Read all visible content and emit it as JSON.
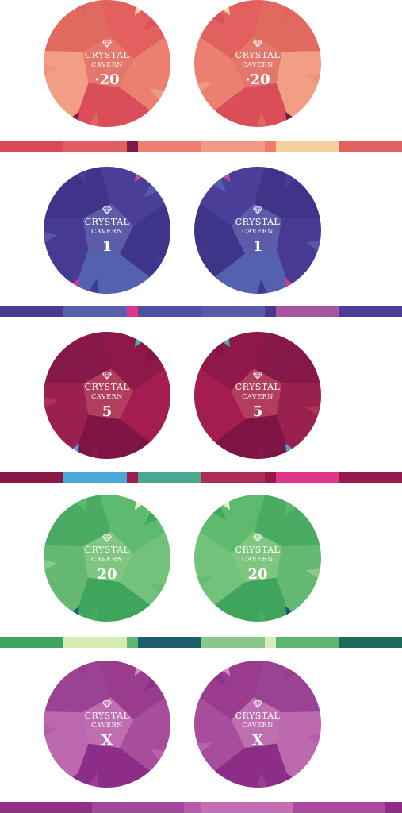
{
  "brand": {
    "line1": "CRYSTAL",
    "line2": "CAVERN",
    "icon": "gem-icon"
  },
  "chip_sets": [
    {
      "id": "set-020",
      "value": "·20",
      "colors": {
        "facets": [
          "#f0907a",
          "#e2605e",
          "#ec8070",
          "#d94e58",
          "#f29e84",
          "#e06a60"
        ],
        "center": "#e37569",
        "accents": [
          "#f5d4a8",
          "#7a1a4a"
        ]
      },
      "stripe": [
        "#d94a56",
        "#e35e5e",
        "#7a1a4a",
        "#ef8070",
        "#f29a80",
        "#f07a68",
        "#f5d0a0",
        "#e2605e"
      ]
    },
    {
      "id": "set-1",
      "value": "1",
      "colors": {
        "facets": [
          "#5a5aa8",
          "#4a3e98",
          "#3e3489",
          "#5262ae",
          "#473a92",
          "#40348a"
        ],
        "center": "#5c5ca8",
        "accents": [
          "#c05090",
          "#e0358a"
        ]
      },
      "stripe": [
        "#4a3a90",
        "#5860ac",
        "#e0358a",
        "#4f4ea0",
        "#5a5aaa",
        "#463a8e",
        "#a855a0",
        "#4c3e96"
      ]
    },
    {
      "id": "set-5",
      "value": "5",
      "colors": {
        "facets": [
          "#b03656",
          "#8e1848",
          "#a41c50",
          "#7e1444",
          "#9a2050",
          "#86184a"
        ],
        "center": "#b23e5c",
        "accents": [
          "#4ab0a0",
          "#4aa4d8"
        ]
      },
      "stripe": [
        "#8a1848",
        "#4aa8d8",
        "#9e1c50",
        "#4aa890",
        "#b02a56",
        "#941a4c",
        "#e0358a",
        "#961a4c"
      ]
    },
    {
      "id": "set-20",
      "value": "20",
      "colors": {
        "facets": [
          "#8ecd8e",
          "#5ebb6e",
          "#72c27a",
          "#3fa45c",
          "#64b872",
          "#4aab62"
        ],
        "center": "#7fc47f",
        "accents": [
          "#e8f0c0",
          "#1c5e6e"
        ]
      },
      "stripe": [
        "#3ea45e",
        "#d4ecb0",
        "#60b870",
        "#1c5e6e",
        "#88c88c",
        "#d8ecb8",
        "#5cb66c",
        "#1c6a58"
      ]
    },
    {
      "id": "set-x",
      "value": "X",
      "colors": {
        "facets": [
          "#b65aa6",
          "#9a3c8e",
          "#a84c9c",
          "#8c2e88",
          "#bc68ae",
          "#9a4294"
        ],
        "center": "#c070b0",
        "accents": [
          "#d48ac0",
          "#8a2c86"
        ]
      },
      "stripe": [
        "#8e3088",
        "#a048a0",
        "#b65aaa",
        "#c46eb4",
        "#a84aa0",
        "#8c2c86"
      ]
    }
  ]
}
